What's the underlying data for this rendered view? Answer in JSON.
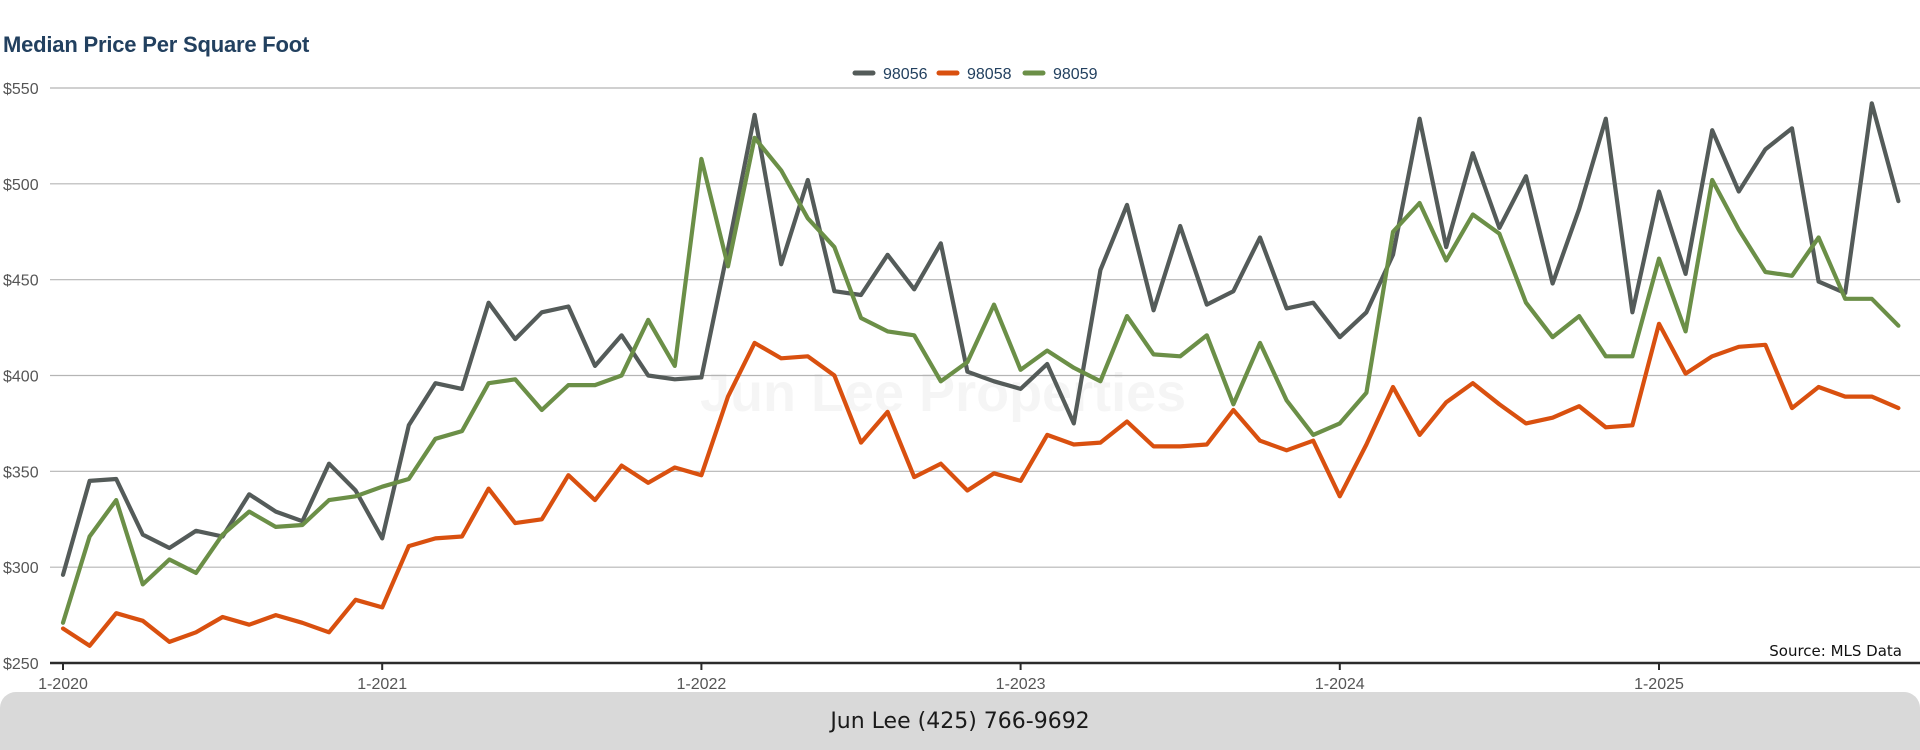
{
  "chart_data": {
    "type": "line",
    "title": "Median Price Per Square Foot",
    "x_start": "2020-01",
    "x_end": "2025-10",
    "x_ticks": [
      {
        "label": "1-2020",
        "month": "2020-01"
      },
      {
        "label": "1-2021",
        "month": "2021-01"
      },
      {
        "label": "1-2022",
        "month": "2022-01"
      },
      {
        "label": "1-2023",
        "month": "2023-01"
      },
      {
        "label": "1-2024",
        "month": "2024-01"
      },
      {
        "label": "1-2025",
        "month": "2025-01"
      }
    ],
    "y_ticks": [
      {
        "label": "$250",
        "value": 250
      },
      {
        "label": "$300",
        "value": 300
      },
      {
        "label": "$350",
        "value": 350
      },
      {
        "label": "$400",
        "value": 400
      },
      {
        "label": "$450",
        "value": 450
      },
      {
        "label": "$500",
        "value": 500
      },
      {
        "label": "$550",
        "value": 550
      }
    ],
    "ylim": [
      250,
      550
    ],
    "grid": "horizontal",
    "legend_position": "top-center",
    "series": [
      {
        "name": "98056",
        "color": "#545b59",
        "values": [
          296,
          345,
          346,
          317,
          310,
          319,
          316,
          338,
          329,
          324,
          354,
          340,
          315,
          374,
          396,
          393,
          438,
          419,
          433,
          436,
          405,
          421,
          400,
          398,
          399,
          466,
          536,
          458,
          502,
          444,
          442,
          463,
          445,
          469,
          402,
          397,
          393,
          406,
          375,
          455,
          489,
          434,
          478,
          437,
          444,
          472,
          435,
          438,
          420,
          433,
          463,
          534,
          467,
          516,
          477,
          504,
          448,
          487,
          534,
          433,
          496,
          453,
          528,
          496,
          518,
          529,
          449,
          443,
          542,
          491
        ]
      },
      {
        "name": "98058",
        "color": "#d9500f",
        "values": [
          268,
          259,
          276,
          272,
          261,
          266,
          274,
          270,
          275,
          271,
          266,
          283,
          279,
          311,
          315,
          316,
          341,
          323,
          325,
          348,
          335,
          353,
          344,
          352,
          348,
          389,
          417,
          409,
          410,
          400,
          365,
          381,
          347,
          354,
          340,
          349,
          345,
          369,
          364,
          365,
          376,
          363,
          363,
          364,
          382,
          366,
          361,
          366,
          337,
          364,
          394,
          369,
          386,
          396,
          385,
          375,
          378,
          384,
          373,
          374,
          427,
          401,
          410,
          415,
          416,
          383,
          394,
          389,
          389,
          383
        ]
      },
      {
        "name": "98059",
        "color": "#6b8f47",
        "values": [
          271,
          316,
          335,
          291,
          304,
          297,
          317,
          329,
          321,
          322,
          335,
          337,
          342,
          346,
          367,
          371,
          396,
          398,
          382,
          395,
          395,
          400,
          429,
          405,
          513,
          457,
          524,
          507,
          482,
          467,
          430,
          423,
          421,
          397,
          407,
          437,
          403,
          413,
          404,
          397,
          431,
          411,
          410,
          421,
          385,
          417,
          387,
          369,
          375,
          391,
          475,
          490,
          460,
          484,
          474,
          438,
          420,
          431,
          410,
          410,
          461,
          423,
          502,
          476,
          454,
          452,
          472,
          440,
          440,
          426
        ]
      }
    ]
  },
  "source_text": "Source: MLS Data",
  "footer_text": "Jun Lee (425) 766-9692",
  "watermark_text": "Jun Lee Properties"
}
